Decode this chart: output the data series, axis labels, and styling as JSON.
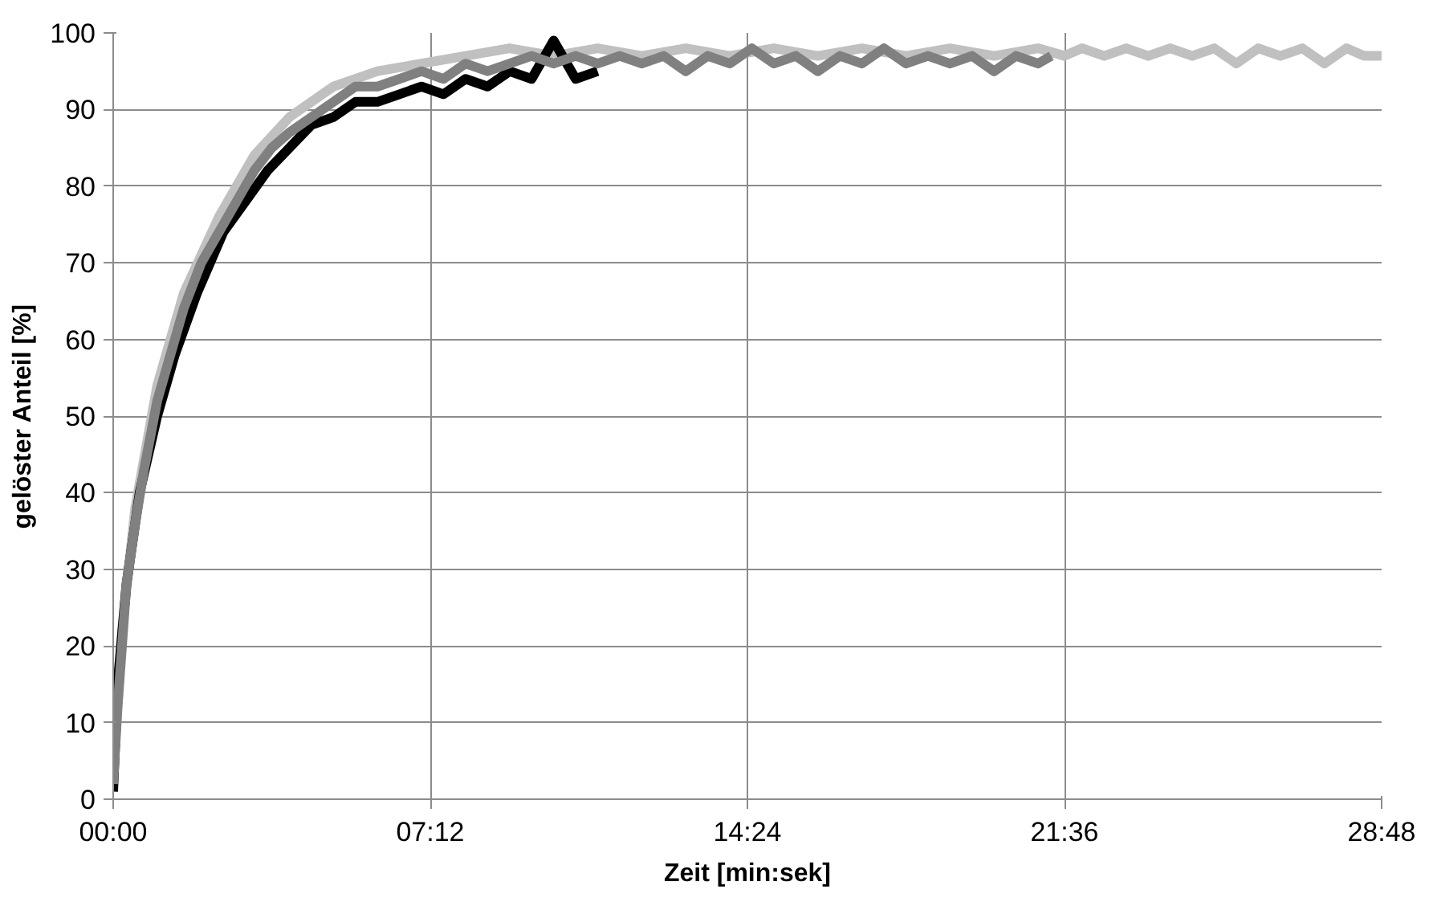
{
  "chart_data": {
    "type": "line",
    "xlabel": "Zeit [min:sek]",
    "ylabel": "gelöster Anteil [%]",
    "xlim": [
      0,
      28.8
    ],
    "ylim": [
      0,
      100
    ],
    "xticks": [
      {
        "value": 0,
        "label": "00:00"
      },
      {
        "value": 7.2,
        "label": "07:12"
      },
      {
        "value": 14.4,
        "label": "14:24"
      },
      {
        "value": 21.6,
        "label": "21:36"
      },
      {
        "value": 28.8,
        "label": "28:48"
      }
    ],
    "yticks": [
      0,
      10,
      20,
      30,
      40,
      50,
      60,
      70,
      80,
      90,
      100
    ],
    "grid": true,
    "marker": "none",
    "line_style": "solid",
    "series": [
      {
        "color": "#c0c0c0",
        "x": [
          0,
          0.2,
          0.5,
          1.0,
          1.6,
          2.4,
          3.2,
          4.0,
          5.0,
          6.0,
          7.0,
          8.0,
          9.0,
          10.0,
          11.0,
          12.0,
          13.0,
          14.0,
          15.0,
          16.0,
          17.0,
          18.0,
          19.0,
          20.0,
          21.0,
          21.6,
          22.0,
          22.5,
          23.0,
          23.5,
          24.0,
          24.5,
          25.0,
          25.5,
          26.0,
          26.5,
          27.0,
          27.5,
          28.0,
          28.4,
          28.8
        ],
        "values": [
          3,
          22,
          38,
          54,
          66,
          76,
          84,
          89,
          93,
          95,
          96,
          97,
          98,
          97,
          98,
          97,
          98,
          97,
          98,
          97,
          98,
          97,
          98,
          97,
          98,
          97,
          98,
          97,
          98,
          97,
          98,
          97,
          98,
          96,
          98,
          97,
          98,
          96,
          98,
          97,
          97
        ]
      },
      {
        "color": "#000000",
        "x": [
          0,
          0.1,
          0.3,
          0.6,
          1.0,
          1.4,
          1.9,
          2.5,
          3.0,
          3.5,
          4.0,
          4.5,
          5.0,
          5.5,
          6.0,
          6.5,
          7.0,
          7.5,
          8.0,
          8.5,
          9.0,
          9.5,
          10.0,
          10.5,
          11.0
        ],
        "values": [
          1,
          15,
          28,
          40,
          50,
          58,
          66,
          74,
          78,
          82,
          85,
          88,
          89,
          91,
          91,
          92,
          93,
          92,
          94,
          93,
          95,
          94,
          99,
          94,
          95
        ]
      },
      {
        "color": "#808080",
        "x": [
          0,
          0.1,
          0.2,
          0.3,
          0.5,
          0.7,
          1.0,
          1.3,
          1.6,
          2.0,
          2.4,
          2.8,
          3.2,
          3.6,
          4.0,
          4.5,
          5.0,
          5.5,
          6.0,
          6.5,
          7.0,
          7.5,
          8.0,
          8.5,
          9.0,
          9.5,
          10.0,
          10.5,
          11.0,
          11.5,
          12.0,
          12.5,
          13.0,
          13.5,
          14.0,
          14.5,
          15.0,
          15.5,
          16.0,
          16.5,
          17.0,
          17.5,
          18.0,
          18.5,
          19.0,
          19.5,
          20.0,
          20.5,
          21.0,
          21.3
        ],
        "values": [
          2,
          12,
          20,
          28,
          36,
          43,
          52,
          58,
          64,
          70,
          74,
          78,
          82,
          85,
          87,
          89,
          91,
          93,
          93,
          94,
          95,
          94,
          96,
          95,
          96,
          97,
          96,
          97,
          96,
          97,
          96,
          97,
          95,
          97,
          96,
          98,
          96,
          97,
          95,
          97,
          96,
          98,
          96,
          97,
          96,
          97,
          95,
          97,
          96,
          97
        ]
      }
    ]
  }
}
